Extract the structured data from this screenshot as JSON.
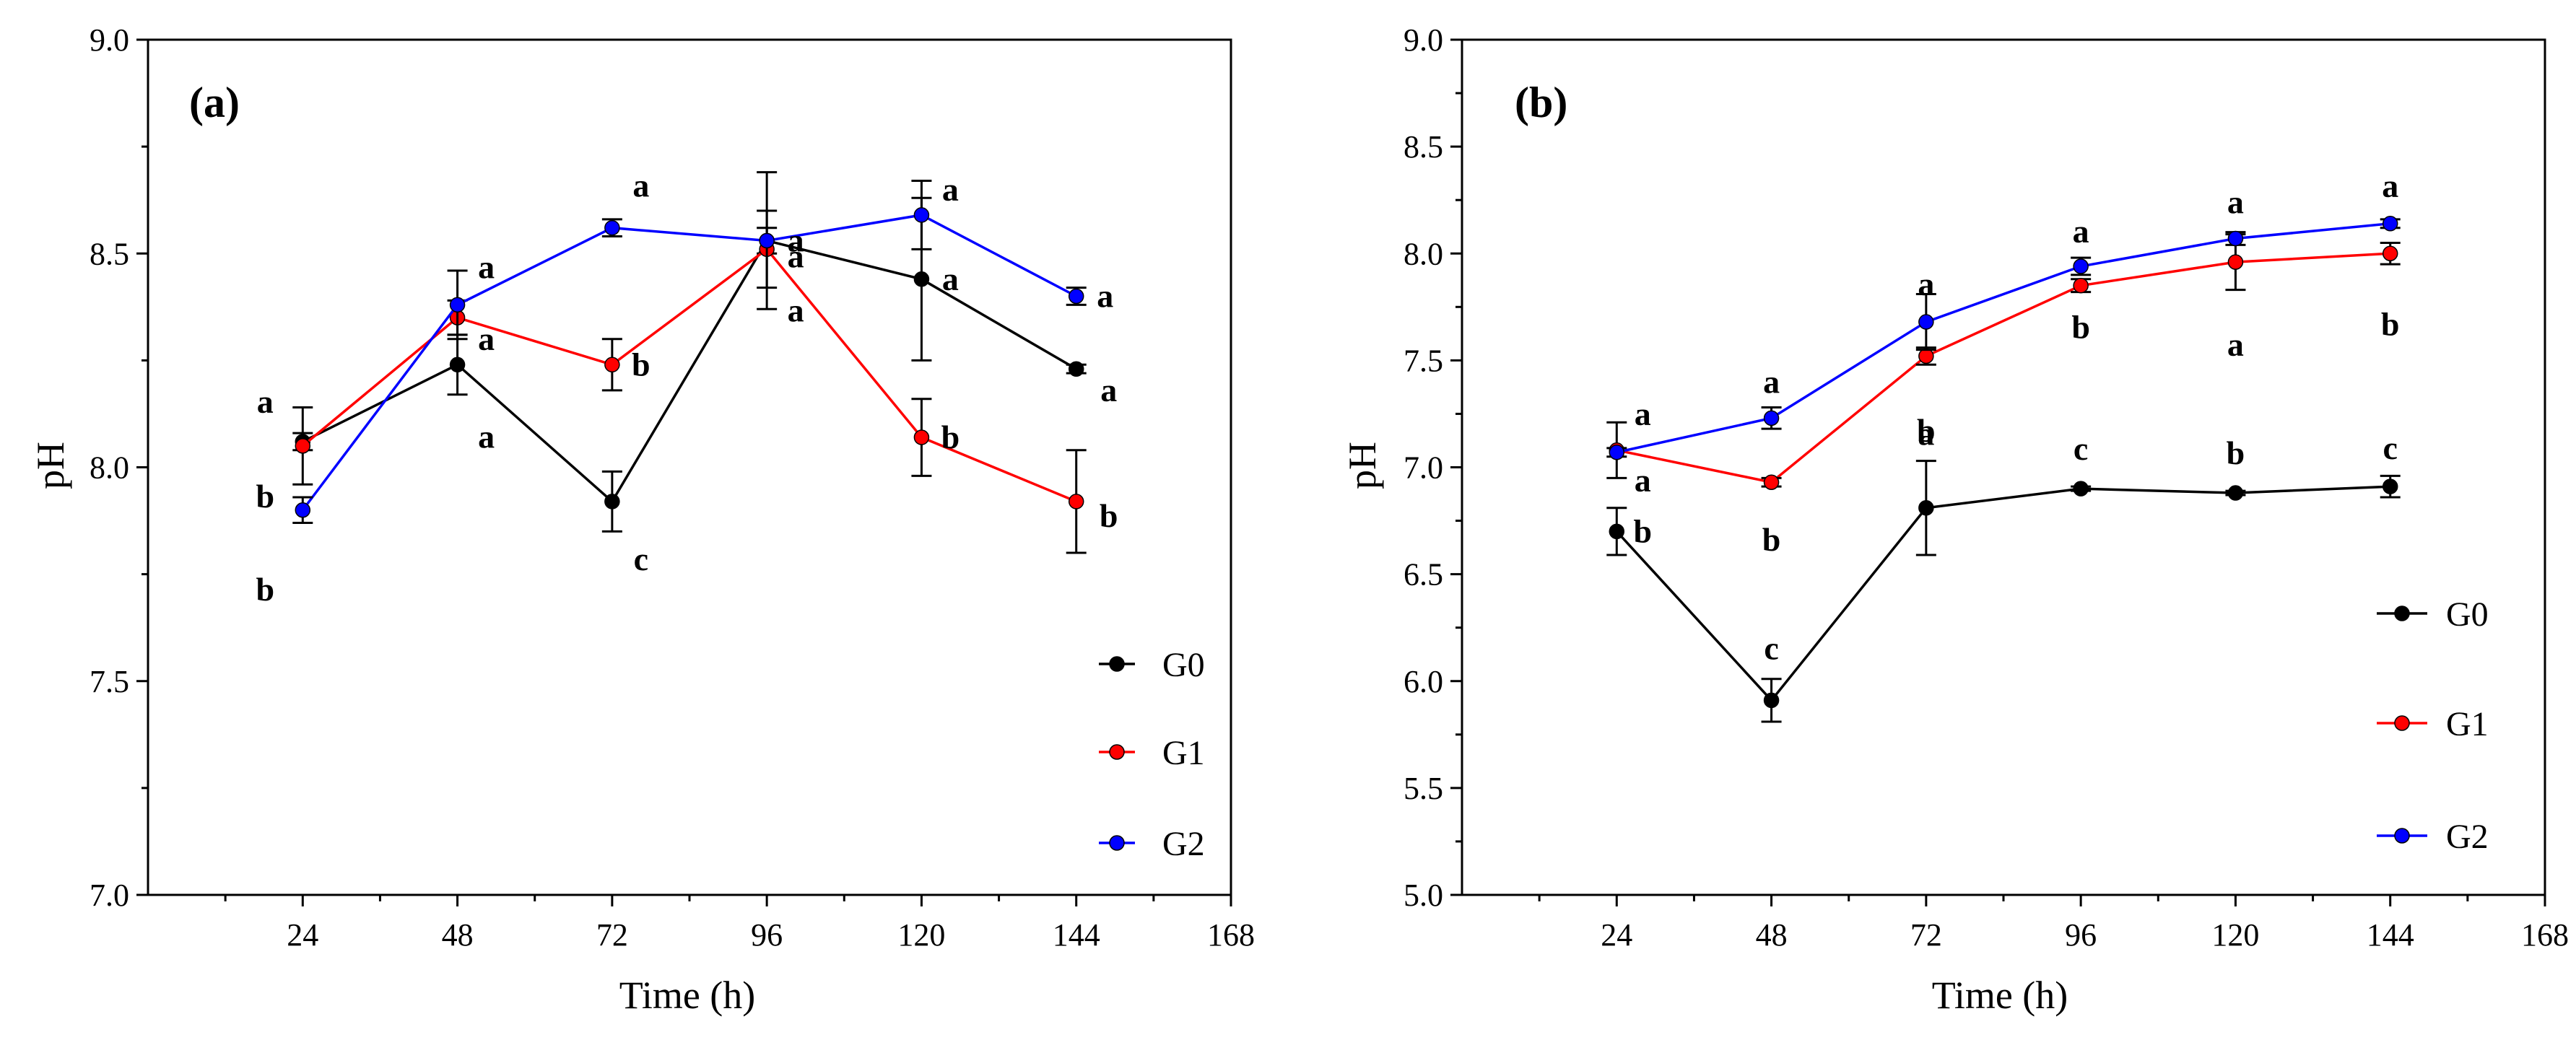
{
  "chart_data": [
    {
      "type": "line",
      "panel_label": "(a)",
      "xlabel": "Time (h)",
      "ylabel": "pH",
      "xlim": [
        0,
        168
      ],
      "ylim": [
        7.0,
        9.0
      ],
      "xticks": [
        24,
        48,
        72,
        96,
        120,
        144,
        168
      ],
      "yticks": [
        7.0,
        7.5,
        8.0,
        8.5,
        9.0
      ],
      "ytick_labels": [
        "7.0",
        "7.5",
        "8.0",
        "8.5",
        "9.0"
      ],
      "legend_position": "right",
      "x": [
        24,
        48,
        72,
        96,
        120,
        144
      ],
      "series": [
        {
          "name": "G0",
          "color": "#000000",
          "values": [
            8.06,
            8.24,
            7.92,
            8.53,
            8.44,
            8.23
          ],
          "errors": [
            0.02,
            0.07,
            0.07,
            0.03,
            0.19,
            0.01
          ],
          "letters": [
            "a",
            "a",
            "c",
            "a",
            "a",
            "a"
          ]
        },
        {
          "name": "G1",
          "color": "#ff0000",
          "values": [
            8.05,
            8.35,
            8.24,
            8.51,
            8.07,
            7.92
          ],
          "errors": [
            0.09,
            0.04,
            0.06,
            0.09,
            0.09,
            0.12
          ],
          "letters": [
            "b",
            "a",
            "b",
            "a",
            "b",
            "b"
          ]
        },
        {
          "name": "G2",
          "color": "#0000ff",
          "values": [
            7.9,
            8.38,
            8.56,
            8.53,
            8.59,
            8.4
          ],
          "errors": [
            0.03,
            0.08,
            0.02,
            0.16,
            0.08,
            0.02
          ],
          "letters": [
            "b",
            "a",
            "a",
            "a",
            "a",
            "a"
          ]
        }
      ]
    },
    {
      "type": "line",
      "panel_label": "(b)",
      "xlabel": "Time (h)",
      "ylabel": "pH",
      "xlim": [
        0,
        168
      ],
      "ylim": [
        5.0,
        9.0
      ],
      "xticks": [
        24,
        48,
        72,
        96,
        120,
        144,
        168
      ],
      "yticks": [
        5.0,
        5.5,
        6.0,
        6.5,
        7.0,
        7.5,
        8.0,
        8.5,
        9.0
      ],
      "ytick_labels": [
        "5.0",
        "5.5",
        "6.0",
        "6.5",
        "7.0",
        "7.5",
        "8.0",
        "8.5",
        "9.0"
      ],
      "legend_position": "right",
      "x": [
        24,
        48,
        72,
        96,
        120,
        144
      ],
      "series": [
        {
          "name": "G0",
          "color": "#000000",
          "values": [
            6.7,
            5.91,
            6.81,
            6.9,
            6.88,
            6.91
          ],
          "errors": [
            0.11,
            0.1,
            0.22,
            0.01,
            0.01,
            0.05
          ],
          "letters": [
            "b",
            "c",
            "b",
            "c",
            "b",
            "c"
          ]
        },
        {
          "name": "G1",
          "color": "#ff0000",
          "values": [
            7.08,
            6.93,
            7.52,
            7.85,
            7.96,
            8.0
          ],
          "errors": [
            0.13,
            0.02,
            0.04,
            0.03,
            0.13,
            0.05
          ],
          "letters": [
            "a",
            "b",
            "a",
            "b",
            "a",
            "b"
          ]
        },
        {
          "name": "G2",
          "color": "#0000ff",
          "values": [
            7.07,
            7.23,
            7.68,
            7.94,
            8.07,
            8.14
          ],
          "errors": [
            0.02,
            0.05,
            0.13,
            0.04,
            0.03,
            0.02
          ],
          "letters": [
            "a",
            "a",
            "a",
            "a",
            "a",
            "a"
          ]
        }
      ]
    }
  ]
}
